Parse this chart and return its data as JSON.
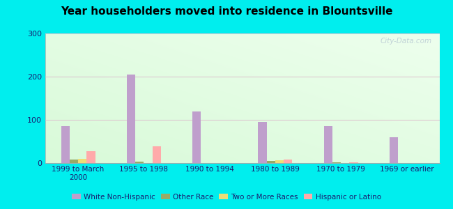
{
  "title": "Year householders moved into residence in Blountsville",
  "categories": [
    "1999 to March\n2000",
    "1995 to 1998",
    "1990 to 1994",
    "1980 to 1989",
    "1970 to 1979",
    "1969 or earlier"
  ],
  "series": {
    "White Non-Hispanic": [
      85,
      205,
      120,
      95,
      85,
      60
    ],
    "Other Race": [
      8,
      3,
      0,
      5,
      2,
      0
    ],
    "Two or More Races": [
      10,
      0,
      0,
      7,
      0,
      0
    ],
    "Hispanic or Latino": [
      28,
      38,
      0,
      8,
      2,
      0
    ]
  },
  "colors": {
    "White Non-Hispanic": "#bf9fcc",
    "Other Race": "#99aa66",
    "Two or More Races": "#eedd77",
    "Hispanic or Latino": "#ffaaaa"
  },
  "ylim": [
    0,
    300
  ],
  "yticks": [
    0,
    100,
    200,
    300
  ],
  "outer_bg": "#00eeee",
  "bar_width": 0.13,
  "legend_labels": [
    "White Non-Hispanic",
    "Other Race",
    "Two or More Races",
    "Hispanic or Latino"
  ]
}
